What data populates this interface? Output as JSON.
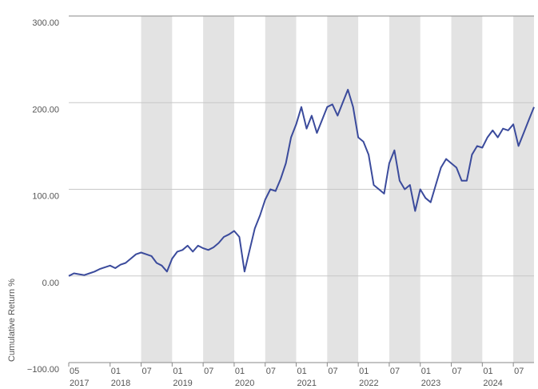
{
  "chart_data": {
    "type": "line",
    "y_label": "Cumulative Return %",
    "x": [
      "2017-05",
      "2017-06",
      "2017-07",
      "2017-08",
      "2017-09",
      "2017-10",
      "2017-11",
      "2017-12",
      "2018-01",
      "2018-02",
      "2018-03",
      "2018-04",
      "2018-05",
      "2018-06",
      "2018-07",
      "2018-08",
      "2018-09",
      "2018-10",
      "2018-11",
      "2018-12",
      "2019-01",
      "2019-02",
      "2019-03",
      "2019-04",
      "2019-05",
      "2019-06",
      "2019-07",
      "2019-08",
      "2019-09",
      "2019-10",
      "2019-11",
      "2019-12",
      "2020-01",
      "2020-02",
      "2020-03",
      "2020-04",
      "2020-05",
      "2020-06",
      "2020-07",
      "2020-08",
      "2020-09",
      "2020-10",
      "2020-11",
      "2020-12",
      "2021-01",
      "2021-02",
      "2021-03",
      "2021-04",
      "2021-05",
      "2021-06",
      "2021-07",
      "2021-08",
      "2021-09",
      "2021-10",
      "2021-11",
      "2021-12",
      "2022-01",
      "2022-02",
      "2022-03",
      "2022-04",
      "2022-05",
      "2022-06",
      "2022-07",
      "2022-08",
      "2022-09",
      "2022-10",
      "2022-11",
      "2022-12",
      "2023-01",
      "2023-02",
      "2023-03",
      "2023-04",
      "2023-05",
      "2023-06",
      "2023-07",
      "2023-08",
      "2023-09",
      "2023-10",
      "2023-11",
      "2023-12",
      "2024-01",
      "2024-02",
      "2024-03",
      "2024-04",
      "2024-05",
      "2024-06",
      "2024-07",
      "2024-08",
      "2024-09",
      "2024-10",
      "2024-11"
    ],
    "series": [
      {
        "color": "#3b4b9c",
        "values": [
          0,
          3,
          2,
          1,
          3,
          5,
          8,
          10,
          12,
          9,
          13,
          15,
          20,
          25,
          27,
          25,
          23,
          15,
          12,
          5,
          20,
          28,
          30,
          35,
          28,
          35,
          32,
          30,
          33,
          38,
          45,
          48,
          52,
          45,
          5,
          30,
          55,
          70,
          88,
          100,
          98,
          112,
          130,
          160,
          175,
          195,
          170,
          185,
          165,
          180,
          195,
          198,
          185,
          200,
          215,
          195,
          160,
          155,
          140,
          105,
          100,
          95,
          130,
          145,
          110,
          100,
          105,
          75,
          100,
          90,
          85,
          105,
          125,
          135,
          130,
          125,
          110,
          110,
          140,
          150,
          148,
          160,
          168,
          160,
          170,
          168,
          175,
          150,
          165,
          180,
          195
        ]
      }
    ],
    "xlim": [
      "2017-05",
      "2024-11"
    ],
    "xticks": [
      {
        "value": "2017-05",
        "label": "05",
        "year": "2017"
      },
      {
        "value": "2018-01",
        "label": "01",
        "year": "2018"
      },
      {
        "value": "2018-07",
        "label": "07"
      },
      {
        "value": "2019-01",
        "label": "01",
        "year": "2019"
      },
      {
        "value": "2019-07",
        "label": "07"
      },
      {
        "value": "2020-01",
        "label": "01",
        "year": "2020"
      },
      {
        "value": "2020-07",
        "label": "07"
      },
      {
        "value": "2021-01",
        "label": "01",
        "year": "2021"
      },
      {
        "value": "2021-07",
        "label": "07"
      },
      {
        "value": "2022-01",
        "label": "01",
        "year": "2022"
      },
      {
        "value": "2022-07",
        "label": "07"
      },
      {
        "value": "2023-01",
        "label": "01",
        "year": "2023"
      },
      {
        "value": "2023-07",
        "label": "07"
      },
      {
        "value": "2024-01",
        "label": "01",
        "year": "2024"
      },
      {
        "value": "2024-07",
        "label": "07"
      }
    ],
    "ylim": [
      -100,
      300
    ],
    "yticks": [
      {
        "value": -100,
        "label": "−100.00"
      },
      {
        "value": 0,
        "label": "0.00"
      },
      {
        "value": 100,
        "label": "100.00"
      },
      {
        "value": 200,
        "label": "200.00"
      },
      {
        "value": 300,
        "label": "300.00"
      }
    ],
    "grid": true
  }
}
